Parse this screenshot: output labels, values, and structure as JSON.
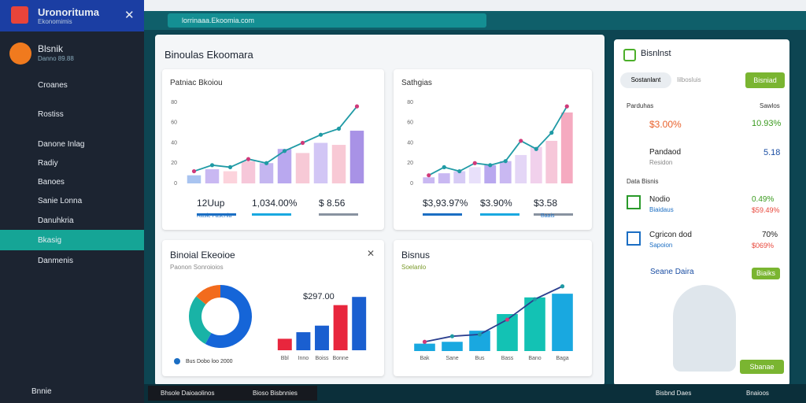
{
  "sidebar": {
    "brand": "Uronorituma",
    "brand_sub": "Ekonomimis",
    "user": "Blsnik",
    "user_sub": "Danno 89.88",
    "items": [
      "Croanes",
      "Rostiss",
      "Danone Inlag",
      "Radiy",
      "Banoes",
      "Sanie Lonna",
      "Danuhkria",
      "Bkasig",
      "Danmenis"
    ],
    "footer": "Bnnie"
  },
  "browser": {
    "url": "lorrinaaa.Ekoomia.com"
  },
  "main": {
    "title": "Binoulas Ekoomara"
  },
  "chart_data": [
    {
      "type": "combo",
      "title": "Patniac Bkoiou",
      "values": [
        8,
        14,
        12,
        22,
        20,
        34,
        30,
        40,
        38,
        52
      ],
      "colors": [
        "#a9c4f0",
        "#c9b8f2",
        "#fcd3dc",
        "#f6c7d9",
        "#c4b6f0",
        "#b9a8ef",
        "#f7c9d6",
        "#d2c6f5",
        "#f8c9d5",
        "#a892e6"
      ],
      "line": [
        12,
        18,
        16,
        24,
        20,
        32,
        40,
        48,
        54,
        76
      ],
      "line_color": "#1f9aa5",
      "ylim": [
        0,
        80
      ],
      "yticks": [
        0,
        20,
        40,
        60,
        80
      ],
      "stats": [
        "12Uup",
        "1,034.00%",
        "$ 8.56"
      ],
      "legend": "Rasic Fasenia"
    },
    {
      "type": "combo",
      "title": "Sathgias",
      "values": [
        6,
        10,
        12,
        16,
        18,
        22,
        28,
        36,
        42,
        70
      ],
      "colors": [
        "#c9b8f2",
        "#c9b8f2",
        "#d6cbf5",
        "#e8e0fa",
        "#b9a8ef",
        "#c9b8f2",
        "#e4d6f6",
        "#f1d1ec",
        "#f6c7d9",
        "#f5aac0"
      ],
      "line": [
        8,
        16,
        12,
        20,
        18,
        22,
        42,
        34,
        50,
        76
      ],
      "line_color": "#1f9aa5",
      "ylim": [
        0,
        80
      ],
      "yticks": [
        0,
        20,
        40,
        60,
        80
      ],
      "stats": [
        "$3,93.97%",
        "$3.90%",
        "$3.58"
      ],
      "legend": "Baais"
    },
    {
      "type": "donut",
      "title": "Binoial Ekeoioe",
      "subtitle": "Paonon Sonroioios",
      "values": [
        58,
        28,
        14
      ],
      "colors": [
        "#1565d8",
        "#19b3a6",
        "#f26b1d"
      ],
      "legend": "Bus Dobo loo 2000"
    },
    {
      "type": "bar",
      "annotation": "$297.00",
      "categories": [
        "Bbl",
        "Inno",
        "Boiss",
        "Bonne",
        null
      ],
      "values": [
        14,
        22,
        30,
        55,
        65
      ],
      "colors": [
        "#e8263d",
        "#1a5fd0",
        "#1a5fd0",
        "#e8263d",
        "#1a5fd0"
      ],
      "ylim": [
        0,
        70
      ]
    },
    {
      "type": "combo",
      "title": "Bisnus",
      "subtitle": "Soelanlo",
      "categories": [
        "Bak",
        "Sane",
        "Bus",
        "Bass",
        "Bano",
        "Baga"
      ],
      "values": [
        8,
        10,
        22,
        40,
        58,
        62
      ],
      "colors": [
        "#19a8e0",
        "#19a8e0",
        "#19a8e0",
        "#13c2b4",
        "#13c2b4",
        "#19a8e0"
      ],
      "line": [
        10,
        16,
        18,
        34,
        56,
        70
      ],
      "line_color": "#2b3f8f",
      "ylim": [
        0,
        80
      ]
    }
  ],
  "right": {
    "title": "Bisnlnst",
    "tab1": "Sostanlant",
    "tab2": "Iilbosluis",
    "button": "Bisniad",
    "s1": "Parduhas",
    "s1b": "Sawlos",
    "v1": "$3.00%",
    "v2": "10.93%",
    "r2": "Pandaod",
    "r2s": "Residon",
    "r2v": "5.18",
    "section": "Data Bisnis",
    "r3": "Nodio",
    "r3s": "Biaidaus",
    "r3v": "0.49%",
    "r3v2": "$59.49%",
    "r4": "Cgricon dod",
    "r4s": "Sapoion",
    "r4v": "70%",
    "r4v2": "$069%",
    "r5": "Seane Daira",
    "r5b": "Biaiks",
    "bottom": "Sbanae"
  },
  "taskbar": {
    "a": "Bhsole Daioaolinos",
    "b": "Bioso Bisbnnies",
    "c": "Bisbnd Daes",
    "d": "Bnaioos"
  }
}
